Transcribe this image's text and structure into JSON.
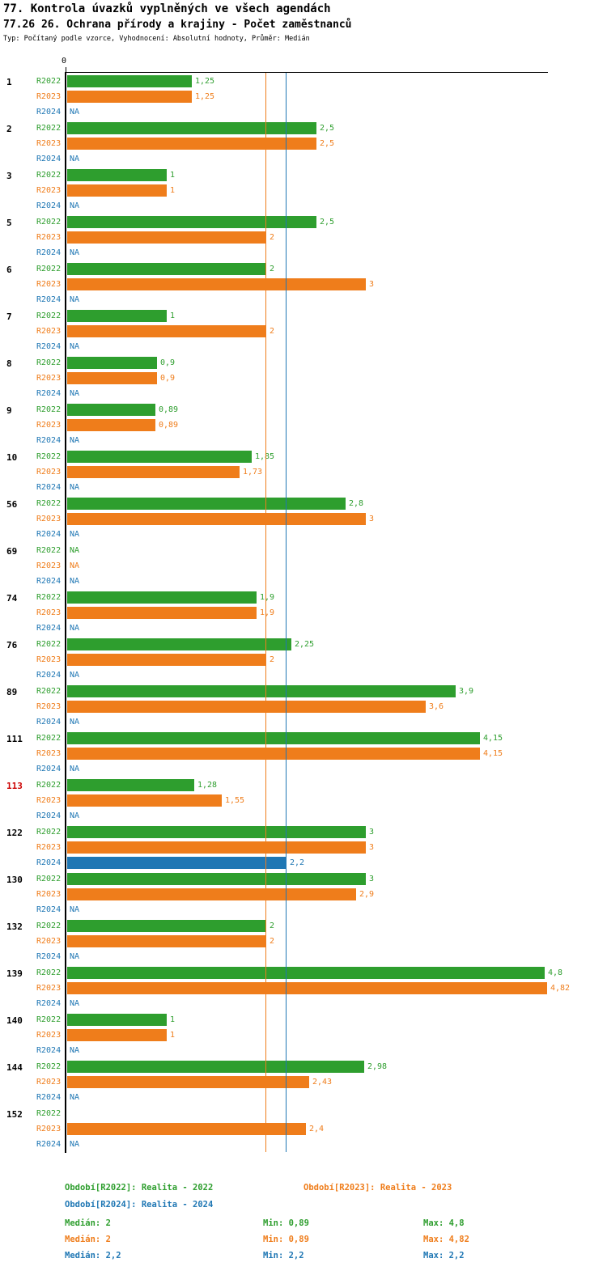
{
  "header": {
    "title": "77. Kontrola úvazků vyplněných ve všech agendách",
    "subtitle": "77.26 26. Ochrana přírody a krajiny - Počet zaměstnanců",
    "meta": "Typ: Počítaný podle vzorce, Vyhodnocení: Absolutní hodnoty, Průměr: Medián"
  },
  "colors": {
    "r2022": "#2e9e2e",
    "r2023": "#ef7d1b",
    "r2024": "#1f77b4",
    "highlight_id": "#cc0000",
    "axis": "#000000"
  },
  "chart_data": {
    "type": "bar",
    "orientation": "horizontal",
    "title": "77. Kontrola úvazků vyplněných ve všech agendách",
    "subtitle": "77.26 26. Ochrana přírody a krajiny - Počet zaměstnanců",
    "x_origin_label": "0",
    "xlim": [
      0,
      4.95
    ],
    "series_names": [
      "R2022",
      "R2023",
      "R2024"
    ],
    "reference_lines": [
      {
        "series": "R2023",
        "value": 2.0,
        "color": "#ef7d1b"
      },
      {
        "series": "R2024",
        "value": 2.2,
        "color": "#1f77b4"
      }
    ],
    "stats": {
      "R2022": {
        "median": 2,
        "min": 0.89,
        "max": 4.8
      },
      "R2023": {
        "median": 2,
        "min": 0.89,
        "max": 4.82
      },
      "R2024": {
        "median": 2.2,
        "min": 2.2,
        "max": 2.2
      }
    },
    "groups": [
      {
        "id": "1",
        "highlight": false,
        "rows": [
          {
            "series": "R2022",
            "text": "1,25",
            "value": 1.25
          },
          {
            "series": "R2023",
            "text": "1,25",
            "value": 1.25
          },
          {
            "series": "R2024",
            "text": "NA",
            "value": null
          }
        ]
      },
      {
        "id": "2",
        "highlight": false,
        "rows": [
          {
            "series": "R2022",
            "text": "2,5",
            "value": 2.5
          },
          {
            "series": "R2023",
            "text": "2,5",
            "value": 2.5
          },
          {
            "series": "R2024",
            "text": "NA",
            "value": null
          }
        ]
      },
      {
        "id": "3",
        "highlight": false,
        "rows": [
          {
            "series": "R2022",
            "text": "1",
            "value": 1
          },
          {
            "series": "R2023",
            "text": "1",
            "value": 1
          },
          {
            "series": "R2024",
            "text": "NA",
            "value": null
          }
        ]
      },
      {
        "id": "5",
        "highlight": false,
        "rows": [
          {
            "series": "R2022",
            "text": "2,5",
            "value": 2.5
          },
          {
            "series": "R2023",
            "text": "2",
            "value": 2
          },
          {
            "series": "R2024",
            "text": "NA",
            "value": null
          }
        ]
      },
      {
        "id": "6",
        "highlight": false,
        "rows": [
          {
            "series": "R2022",
            "text": "2",
            "value": 2
          },
          {
            "series": "R2023",
            "text": "3",
            "value": 3
          },
          {
            "series": "R2024",
            "text": "NA",
            "value": null
          }
        ]
      },
      {
        "id": "7",
        "highlight": false,
        "rows": [
          {
            "series": "R2022",
            "text": "1",
            "value": 1
          },
          {
            "series": "R2023",
            "text": "2",
            "value": 2
          },
          {
            "series": "R2024",
            "text": "NA",
            "value": null
          }
        ]
      },
      {
        "id": "8",
        "highlight": false,
        "rows": [
          {
            "series": "R2022",
            "text": "0,9",
            "value": 0.9
          },
          {
            "series": "R2023",
            "text": "0,9",
            "value": 0.9
          },
          {
            "series": "R2024",
            "text": "NA",
            "value": null
          }
        ]
      },
      {
        "id": "9",
        "highlight": false,
        "rows": [
          {
            "series": "R2022",
            "text": "0,89",
            "value": 0.89
          },
          {
            "series": "R2023",
            "text": "0,89",
            "value": 0.89
          },
          {
            "series": "R2024",
            "text": "NA",
            "value": null
          }
        ]
      },
      {
        "id": "10",
        "highlight": false,
        "rows": [
          {
            "series": "R2022",
            "text": "1,85",
            "value": 1.85
          },
          {
            "series": "R2023",
            "text": "1,73",
            "value": 1.73
          },
          {
            "series": "R2024",
            "text": "NA",
            "value": null
          }
        ]
      },
      {
        "id": "56",
        "highlight": false,
        "rows": [
          {
            "series": "R2022",
            "text": "2,8",
            "value": 2.8
          },
          {
            "series": "R2023",
            "text": "3",
            "value": 3
          },
          {
            "series": "R2024",
            "text": "NA",
            "value": null
          }
        ]
      },
      {
        "id": "69",
        "highlight": false,
        "rows": [
          {
            "series": "R2022",
            "text": "NA",
            "value": null
          },
          {
            "series": "R2023",
            "text": "NA",
            "value": null
          },
          {
            "series": "R2024",
            "text": "NA",
            "value": null
          }
        ]
      },
      {
        "id": "74",
        "highlight": false,
        "rows": [
          {
            "series": "R2022",
            "text": "1,9",
            "value": 1.9
          },
          {
            "series": "R2023",
            "text": "1,9",
            "value": 1.9
          },
          {
            "series": "R2024",
            "text": "NA",
            "value": null
          }
        ]
      },
      {
        "id": "76",
        "highlight": false,
        "rows": [
          {
            "series": "R2022",
            "text": "2,25",
            "value": 2.25
          },
          {
            "series": "R2023",
            "text": "2",
            "value": 2
          },
          {
            "series": "R2024",
            "text": "NA",
            "value": null
          }
        ]
      },
      {
        "id": "89",
        "highlight": false,
        "rows": [
          {
            "series": "R2022",
            "text": "3,9",
            "value": 3.9
          },
          {
            "series": "R2023",
            "text": "3,6",
            "value": 3.6
          },
          {
            "series": "R2024",
            "text": "NA",
            "value": null
          }
        ]
      },
      {
        "id": "111",
        "highlight": false,
        "rows": [
          {
            "series": "R2022",
            "text": "4,15",
            "value": 4.15
          },
          {
            "series": "R2023",
            "text": "4,15",
            "value": 4.15
          },
          {
            "series": "R2024",
            "text": "NA",
            "value": null
          }
        ]
      },
      {
        "id": "113",
        "highlight": true,
        "rows": [
          {
            "series": "R2022",
            "text": "1,28",
            "value": 1.28
          },
          {
            "series": "R2023",
            "text": "1,55",
            "value": 1.55
          },
          {
            "series": "R2024",
            "text": "NA",
            "value": null
          }
        ]
      },
      {
        "id": "122",
        "highlight": false,
        "rows": [
          {
            "series": "R2022",
            "text": "3",
            "value": 3
          },
          {
            "series": "R2023",
            "text": "3",
            "value": 3
          },
          {
            "series": "R2024",
            "text": "2,2",
            "value": 2.2
          }
        ]
      },
      {
        "id": "130",
        "highlight": false,
        "rows": [
          {
            "series": "R2022",
            "text": "3",
            "value": 3
          },
          {
            "series": "R2023",
            "text": "2,9",
            "value": 2.9
          },
          {
            "series": "R2024",
            "text": "NA",
            "value": null
          }
        ]
      },
      {
        "id": "132",
        "highlight": false,
        "rows": [
          {
            "series": "R2022",
            "text": "2",
            "value": 2
          },
          {
            "series": "R2023",
            "text": "2",
            "value": 2
          },
          {
            "series": "R2024",
            "text": "NA",
            "value": null
          }
        ]
      },
      {
        "id": "139",
        "highlight": false,
        "rows": [
          {
            "series": "R2022",
            "text": "4,8",
            "value": 4.8
          },
          {
            "series": "R2023",
            "text": "4,82",
            "value": 4.82
          },
          {
            "series": "R2024",
            "text": "NA",
            "value": null
          }
        ]
      },
      {
        "id": "140",
        "highlight": false,
        "rows": [
          {
            "series": "R2022",
            "text": "1",
            "value": 1
          },
          {
            "series": "R2023",
            "text": "1",
            "value": 1
          },
          {
            "series": "R2024",
            "text": "NA",
            "value": null
          }
        ]
      },
      {
        "id": "144",
        "highlight": false,
        "rows": [
          {
            "series": "R2022",
            "text": "2,98",
            "value": 2.98
          },
          {
            "series": "R2023",
            "text": "2,43",
            "value": 2.43
          },
          {
            "series": "R2024",
            "text": "NA",
            "value": null
          }
        ]
      },
      {
        "id": "152",
        "highlight": false,
        "rows": [
          {
            "series": "R2022",
            "text": "",
            "value": null
          },
          {
            "series": "R2023",
            "text": "2,4",
            "value": 2.4
          },
          {
            "series": "R2024",
            "text": "NA",
            "value": null
          }
        ]
      }
    ]
  },
  "legend": {
    "r2022": "Období[R2022]: Realita - 2022",
    "r2023": "Období[R2023]: Realita - 2023",
    "r2024": "Období[R2024]: Realita - 2024",
    "stats": [
      {
        "median": "Medián: 2",
        "min": "Min: 0,89",
        "max": "Max: 4,8"
      },
      {
        "median": "Medián: 2",
        "min": "Min: 0,89",
        "max": "Max: 4,82"
      },
      {
        "median": "Medián: 2,2",
        "min": "Min: 2,2",
        "max": "Max: 2,2"
      }
    ]
  }
}
